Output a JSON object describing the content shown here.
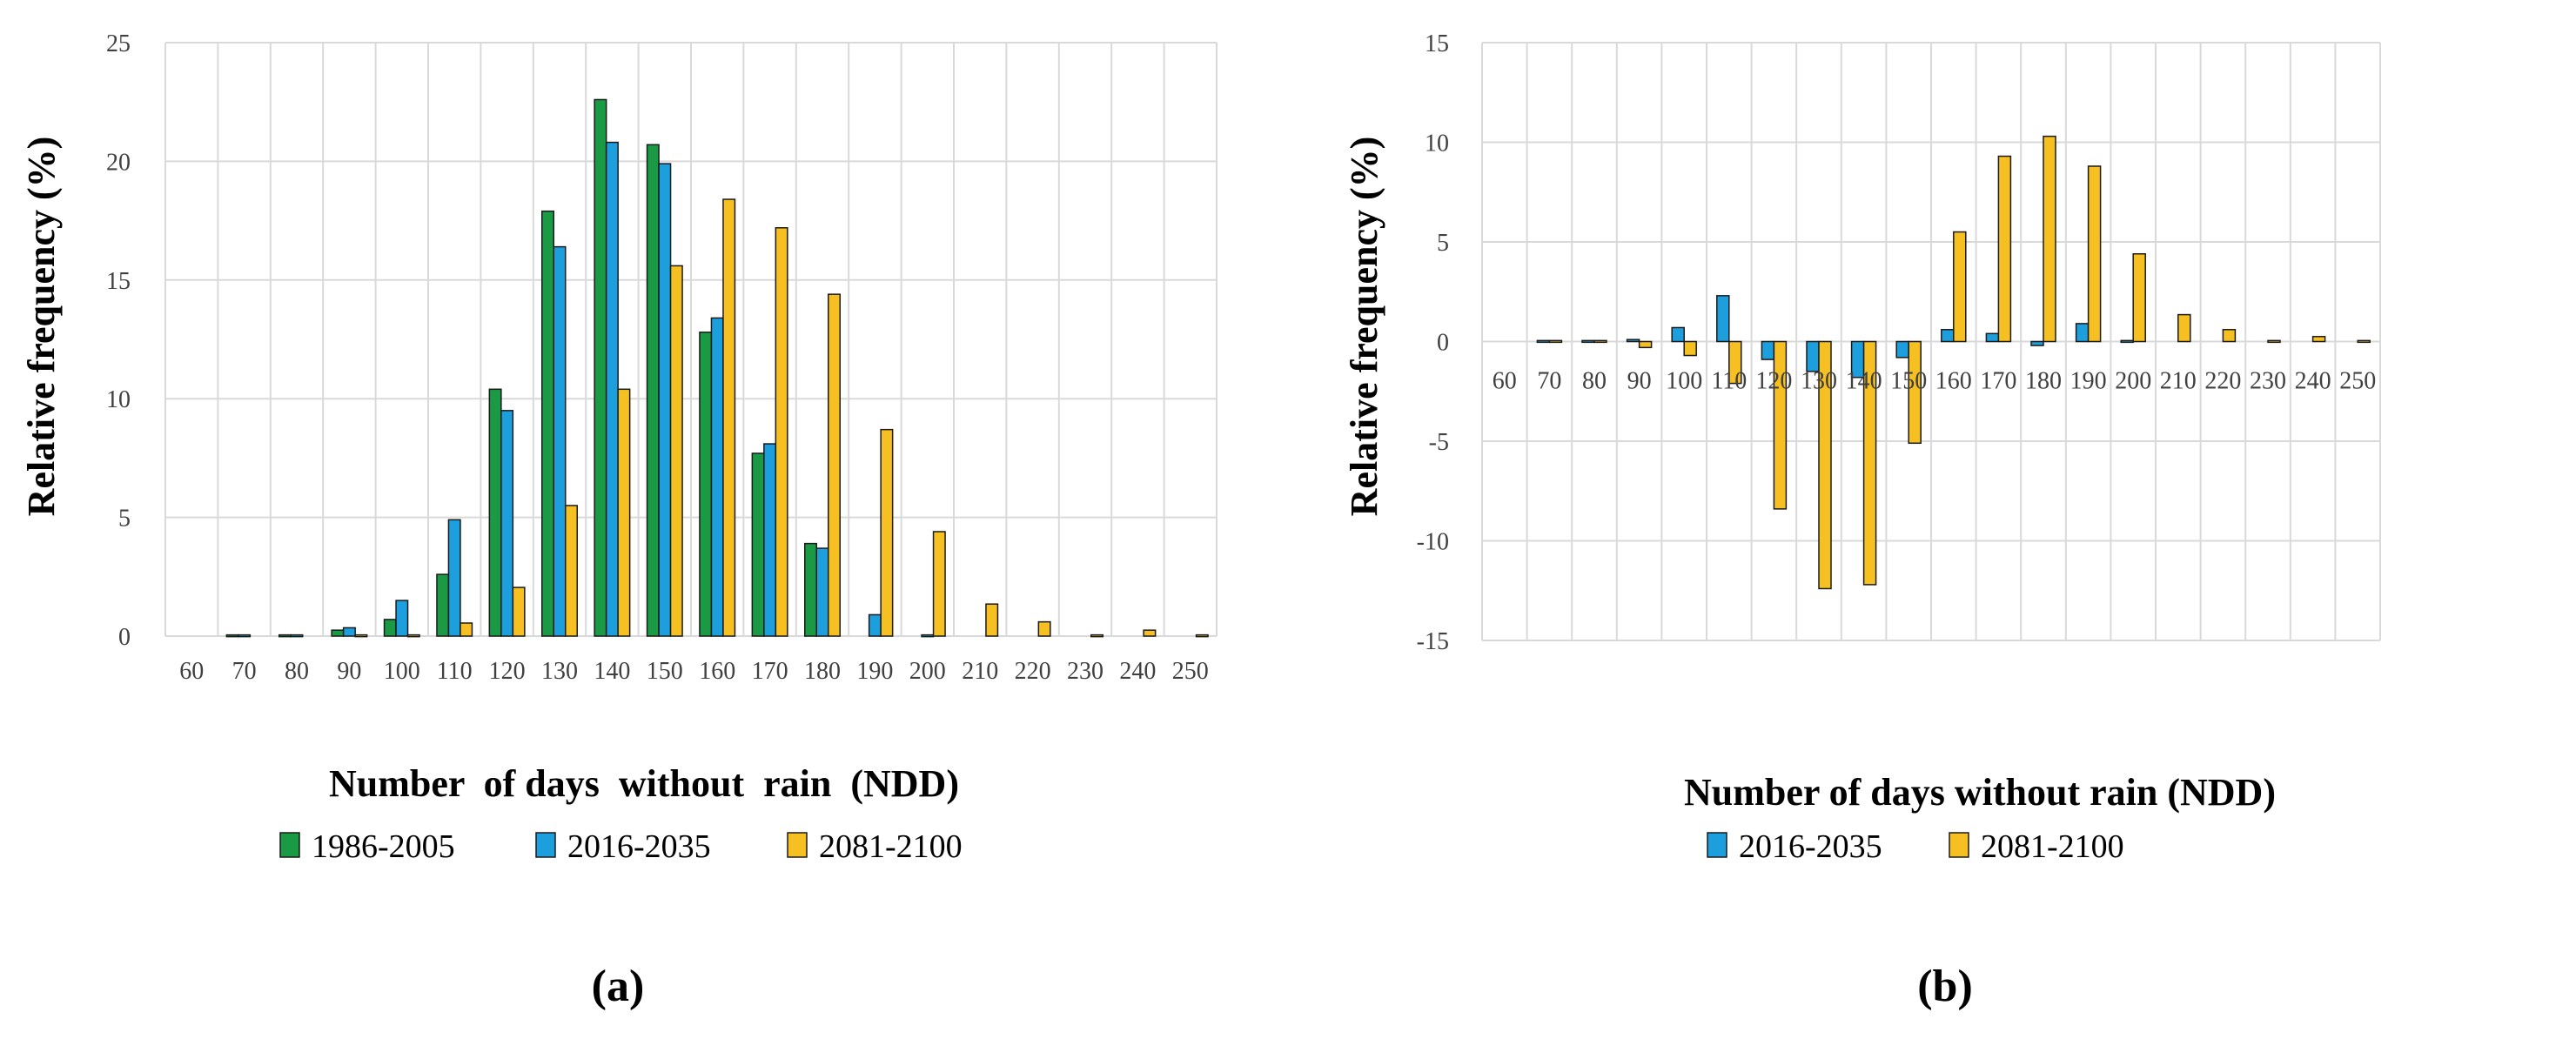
{
  "colors": {
    "1986-2005": "#1a9a45",
    "2016-2035": "#1e9fdd",
    "2081-2100": "#f7c022",
    "grid": "#d9d9d9",
    "bar_stroke": "#1a1a1a"
  },
  "chart_data": [
    {
      "type": "bar",
      "panel_label": "(a)",
      "title": "",
      "xlabel": "Number  of days  without  rain  (NDD)",
      "ylabel": "Relative frequency (%)",
      "ylim": [
        0,
        25
      ],
      "yticks": [
        "0",
        "5",
        "10",
        "15",
        "20",
        "25"
      ],
      "categories": [
        "60",
        "70",
        "80",
        "90",
        "100",
        "110",
        "120",
        "130",
        "140",
        "150",
        "160",
        "170",
        "180",
        "190",
        "200",
        "210",
        "220",
        "230",
        "240",
        "250"
      ],
      "series": [
        {
          "name": "1986-2005",
          "values": [
            0,
            0.05,
            0.05,
            0.25,
            0.7,
            2.6,
            10.4,
            17.9,
            22.6,
            20.7,
            12.8,
            7.7,
            3.9,
            0,
            0,
            0,
            0,
            0,
            0,
            0
          ]
        },
        {
          "name": "2016-2035",
          "values": [
            0,
            0.05,
            0.05,
            0.35,
            1.5,
            4.9,
            9.5,
            16.4,
            20.8,
            19.9,
            13.4,
            8.1,
            3.7,
            0.9,
            0.05,
            0,
            0,
            0,
            0,
            0
          ]
        },
        {
          "name": "2081-2100",
          "values": [
            0,
            0,
            0,
            0.05,
            0.05,
            0.55,
            2.05,
            5.5,
            10.4,
            15.6,
            18.4,
            17.2,
            14.4,
            8.7,
            4.4,
            1.35,
            0.6,
            0.05,
            0.25,
            0.05
          ]
        }
      ],
      "legend": [
        "1986-2005",
        "2016-2035",
        "2081-2100"
      ]
    },
    {
      "type": "bar",
      "panel_label": "(b)",
      "title": "",
      "xlabel": "Number of days without rain (NDD)",
      "ylabel": "Relative frequency (%)",
      "ylim": [
        -15,
        15
      ],
      "yticks": [
        "-15",
        "-10",
        "-5",
        "0",
        "5",
        "10",
        "15"
      ],
      "categories": [
        "60",
        "70",
        "80",
        "90",
        "100",
        "110",
        "120",
        "130",
        "140",
        "150",
        "160",
        "170",
        "180",
        "190",
        "200",
        "210",
        "220",
        "230",
        "240",
        "250"
      ],
      "series": [
        {
          "name": "2016-2035",
          "values": [
            0,
            0.05,
            0.05,
            0.1,
            0.7,
            2.3,
            -0.9,
            -1.5,
            -1.8,
            -0.8,
            0.6,
            0.4,
            -0.2,
            0.9,
            0.05,
            0,
            0,
            0,
            0,
            0
          ]
        },
        {
          "name": "2081-2100",
          "values": [
            0,
            0.05,
            0.05,
            -0.3,
            -0.7,
            -2.1,
            -8.4,
            -12.4,
            -12.2,
            -5.1,
            5.5,
            9.3,
            10.3,
            8.8,
            4.4,
            1.35,
            0.6,
            0.05,
            0.25,
            0.05
          ]
        }
      ],
      "legend": [
        "2016-2035",
        "2081-2100"
      ]
    }
  ]
}
